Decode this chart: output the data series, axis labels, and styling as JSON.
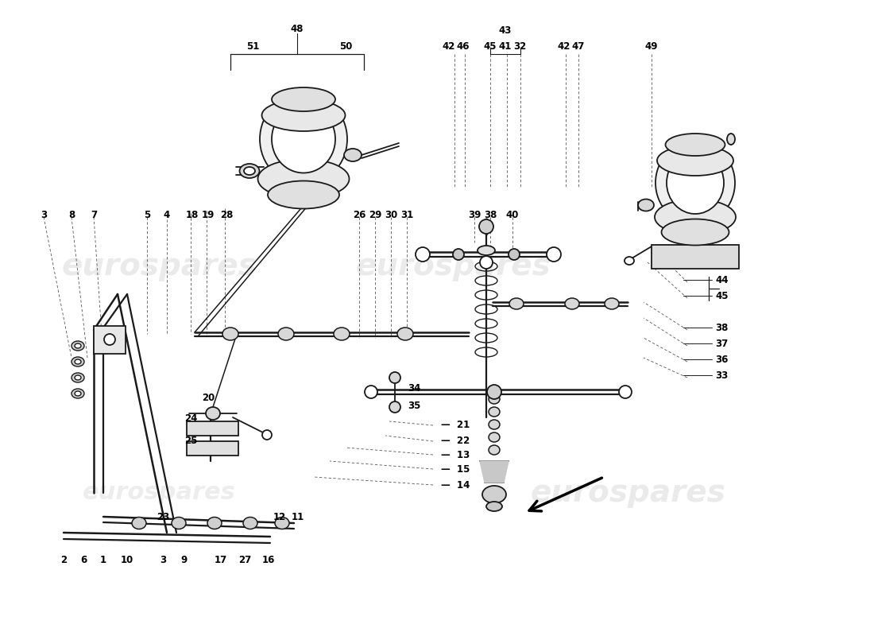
{
  "background_color": "#ffffff",
  "watermark_text": "eurospares",
  "watermark_color": "#d8d8d8",
  "watermark_alpha": 0.45,
  "watermark_fontsize": 30,
  "line_color": "#1a1a1a",
  "part_lw": 1.3,
  "leader_lw": 0.6,
  "label_fontsize": 8.5,
  "label_fontweight": "bold",
  "fig_w": 11.0,
  "fig_h": 8.0,
  "dpi": 100
}
